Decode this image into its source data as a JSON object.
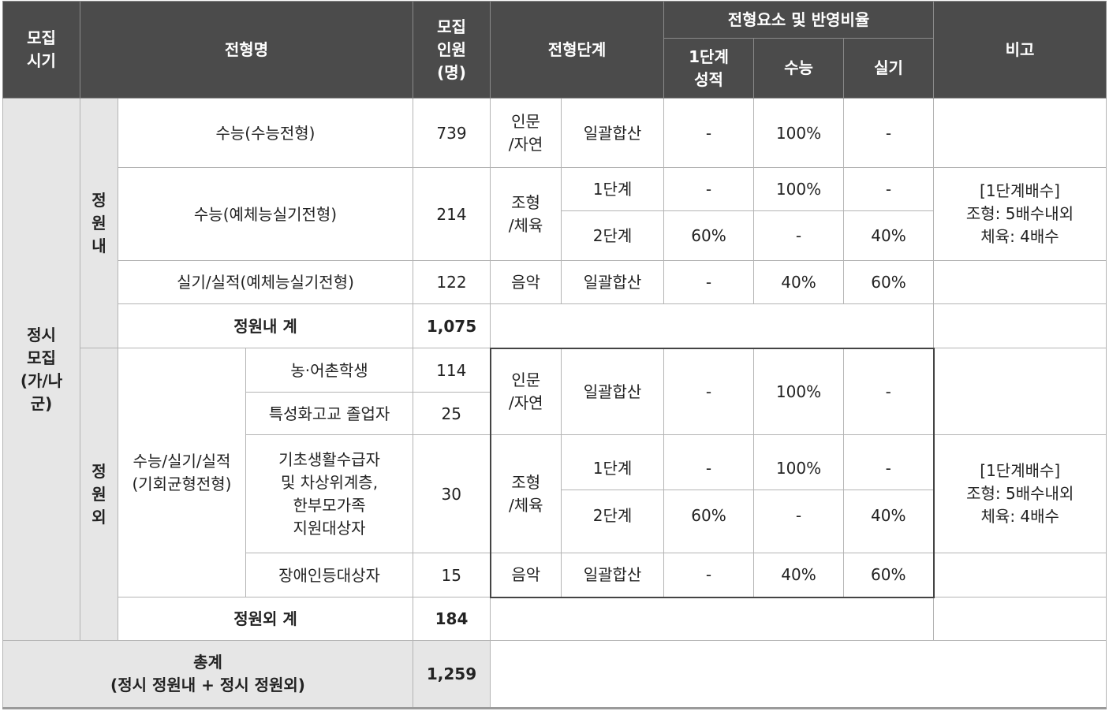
{
  "header": {
    "period": [
      "모집",
      "시기"
    ],
    "admission_name": "전형명",
    "quota": [
      "모집",
      "인원",
      "(명)"
    ],
    "stage": "전형단계",
    "ratio_group": "전형요소 및 반영비율",
    "ratio_stage1": [
      "1단계",
      "성적"
    ],
    "ratio_csat": "수능",
    "ratio_practical": "실기",
    "remarks": "비고"
  },
  "period_label": [
    "정시",
    "모집",
    "(가/나",
    "군)"
  ],
  "in_quota": {
    "label": [
      "정",
      "원",
      "내"
    ],
    "row1": {
      "name": "수능(수능전형)",
      "count": "739",
      "field": [
        "인문",
        "/자연"
      ],
      "stage": "일괄합산",
      "s1": "-",
      "csat": "100%",
      "prac": "-"
    },
    "row2": {
      "name": "수능(예체능실기전형)",
      "count": "214",
      "field": [
        "조형",
        "/체육"
      ],
      "stage_a": {
        "stage": "1단계",
        "s1": "-",
        "csat": "100%",
        "prac": "-"
      },
      "stage_b": {
        "stage": "2단계",
        "s1": "60%",
        "csat": "-",
        "prac": "40%"
      },
      "remark": [
        "[1단계배수]",
        "조형: 5배수내외",
        "체육: 4배수"
      ]
    },
    "row3": {
      "name": "실기/실적(예체능실기전형)",
      "count": "122",
      "field": "음악",
      "stage": "일괄합산",
      "s1": "-",
      "csat": "40%",
      "prac": "60%"
    },
    "subtotal_label": "정원내 계",
    "subtotal": "1,075"
  },
  "out_quota": {
    "label": [
      "정",
      "원",
      "외"
    ],
    "group_name": [
      "수능/실기/실적",
      "(기회균형전형)"
    ],
    "sub1": {
      "name": "농·어촌학생",
      "count": "114"
    },
    "sub2": {
      "name": "특성화고교 졸업자",
      "count": "25"
    },
    "sub3": {
      "name": [
        "기초생활수급자",
        "및 차상위계층,",
        "한부모가족",
        "지원대상자"
      ],
      "count": "30"
    },
    "sub4": {
      "name": "장애인등대상자",
      "count": "15"
    },
    "r1": {
      "field": [
        "인문",
        "/자연"
      ],
      "stage": "일괄합산",
      "s1": "-",
      "csat": "100%",
      "prac": "-"
    },
    "r2": {
      "field": [
        "조형",
        "/체육"
      ],
      "stage_a": {
        "stage": "1단계",
        "s1": "-",
        "csat": "100%",
        "prac": "-"
      },
      "stage_b": {
        "stage": "2단계",
        "s1": "60%",
        "csat": "-",
        "prac": "40%"
      },
      "remark": [
        "[1단계배수]",
        "조형: 5배수내외",
        "체육: 4배수"
      ]
    },
    "r3": {
      "field": "음악",
      "stage": "일괄합산",
      "s1": "-",
      "csat": "40%",
      "prac": "60%"
    },
    "subtotal_label": "정원외 계",
    "subtotal": "184"
  },
  "total": {
    "label": [
      "총계",
      "(정시 정원내 + 정시 정원외)"
    ],
    "value": "1,259"
  }
}
